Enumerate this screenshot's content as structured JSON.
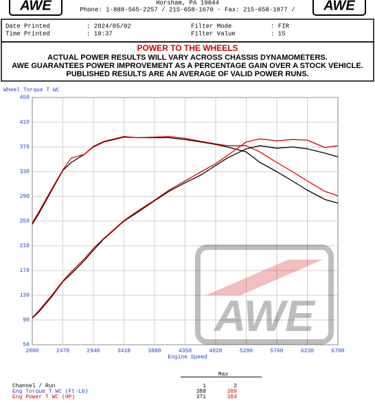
{
  "header": {
    "logo": "AWE",
    "address": "Horsham, PA  19044",
    "phone": "Phone: 1-888-565-2257 / 215-658-1670 - Fax: 215-658-1877 /"
  },
  "info": {
    "rows": [
      {
        "label": "Date Printed",
        "value": ": 2024/05/02",
        "label2": "Filter Mode",
        "value2": ":  FIR"
      },
      {
        "label": "Time Printed",
        "value": ": 10:37",
        "label2": "Filter Value",
        "value2": ":  15"
      }
    ]
  },
  "notice": {
    "title": "POWER TO THE WHEELS",
    "lines": [
      "ACTUAL POWER RESULTS WILL VARY ACROSS CHASSIS DYNAMOMETERS.",
      "AWE GUARANTEES POWER IMPROVEMENT AS A PERCENTAGE GAIN OVER A STOCK VEHICLE.",
      "PUBLISHED RESULTS ARE AN AVERAGE OF VALID POWER RUNS."
    ]
  },
  "chart_data": {
    "type": "line",
    "y_label": "Wheel Torque T WC",
    "x_label": "Engine Speed",
    "x": [
      2000,
      2100,
      2300,
      2470,
      2600,
      2800,
      2940,
      3100,
      3410,
      3600,
      3880,
      4100,
      4350,
      4600,
      4820,
      5000,
      5290,
      5500,
      5760,
      6000,
      6230,
      6500,
      6700
    ],
    "series": [
      {
        "color": "#000000",
        "values": [
          245,
          262,
          300,
          332,
          345,
          358,
          370,
          378,
          386,
          385,
          385,
          385,
          382,
          378,
          374,
          370,
          362,
          345,
          330,
          315,
          300,
          285,
          279
        ]
      },
      {
        "color": "#e00000",
        "values": [
          247,
          265,
          302,
          333,
          352,
          358,
          371,
          379,
          387,
          385,
          386,
          387,
          384,
          379,
          375,
          372,
          372,
          362,
          345,
          330,
          315,
          298,
          291
        ]
      },
      {
        "color": "#000000",
        "values": [
          93,
          103,
          128,
          152,
          165,
          186,
          203,
          221,
          250,
          263,
          283,
          298,
          312,
          325,
          340,
          352,
          367,
          372,
          368,
          370,
          367,
          360,
          354
        ]
      },
      {
        "color": "#e00000",
        "values": [
          94,
          105,
          130,
          153,
          168,
          189,
          206,
          222,
          251,
          265,
          284,
          300,
          315,
          330,
          343,
          356,
          378,
          383,
          380,
          382,
          381,
          369,
          372
        ]
      }
    ],
    "xlim": [
      2000,
      6700
    ],
    "ylim": [
      50,
      450
    ],
    "xticks": [
      2000,
      2470,
      2940,
      3410,
      3880,
      4350,
      4820,
      5290,
      5760,
      6230,
      6700
    ],
    "yticks": [
      50,
      90,
      130,
      170,
      210,
      250,
      290,
      330,
      370,
      410,
      450
    ],
    "grid": true
  },
  "summary": {
    "header": "Max",
    "columns_label": "Channel / Run",
    "runs": [
      1,
      2
    ],
    "rows": [
      {
        "label": "Eng Torque T WC (Ft-Lb)",
        "values": [
          388,
          389
        ]
      },
      {
        "label": "Eng Power T WC (HP)",
        "values": [
          371,
          384
        ]
      }
    ]
  }
}
